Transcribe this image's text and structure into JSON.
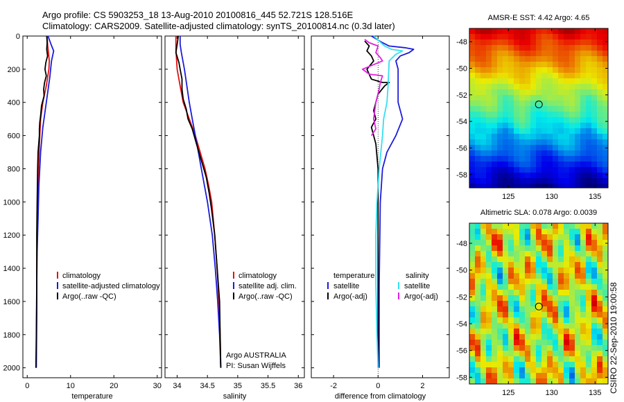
{
  "header": {
    "title": "Argo profile: CS 5903253_18 13-Aug-2010 20100816_445 52.721S 128.516E",
    "subtitle": "Climatology: CARS2009. Satellite-adjusted climatology: synTS_20100814.nc (0.3d later)"
  },
  "side_label": "CSIRO 22-Sep-2010 19:00:58",
  "colors": {
    "climatology": "#e01010",
    "satellite": "#1a1adc",
    "argo": "#000000",
    "salinity_satellite": "#33e0f0",
    "salinity_argo": "#e020e0"
  },
  "chart_data": [
    {
      "type": "line",
      "xlabel": "temperature",
      "xlim": [
        -1,
        31
      ],
      "xticks": [
        0,
        10,
        20,
        30
      ],
      "ylim": [
        0,
        2060
      ],
      "yticks": [
        0,
        200,
        400,
        600,
        800,
        1000,
        1200,
        1400,
        1600,
        1800,
        2000
      ],
      "y_reversed": true,
      "legend": [
        "climatology",
        "satellite-adjusted climatology",
        "Argo(..raw -QC)"
      ],
      "series": [
        {
          "name": "climatology",
          "color": "#e01010",
          "points": [
            [
              4.6,
              0
            ],
            [
              4.7,
              50
            ],
            [
              4.9,
              100
            ],
            [
              5.1,
              150
            ],
            [
              5.0,
              200
            ],
            [
              4.4,
              300
            ],
            [
              3.6,
              400
            ],
            [
              3.1,
              500
            ],
            [
              2.9,
              600
            ],
            [
              2.6,
              800
            ],
            [
              2.4,
              1000
            ],
            [
              2.3,
              1200
            ],
            [
              2.2,
              1400
            ],
            [
              2.2,
              1600
            ],
            [
              2.1,
              1800
            ],
            [
              2.1,
              1900
            ],
            [
              2.0,
              2000
            ]
          ]
        },
        {
          "name": "satellite-adjusted climatology",
          "color": "#1a1adc",
          "points": [
            [
              4.8,
              0
            ],
            [
              5.5,
              50
            ],
            [
              6.1,
              90
            ],
            [
              5.6,
              150
            ],
            [
              5.2,
              250
            ],
            [
              4.4,
              400
            ],
            [
              3.6,
              550
            ],
            [
              3.1,
              700
            ],
            [
              2.7,
              900
            ],
            [
              2.5,
              1100
            ],
            [
              2.3,
              1300
            ],
            [
              2.2,
              1500
            ],
            [
              2.2,
              1700
            ],
            [
              2.1,
              2000
            ]
          ]
        },
        {
          "name": "Argo(..raw -QC)",
          "color": "#000000",
          "points": [
            [
              4.5,
              0
            ],
            [
              4.6,
              40
            ],
            [
              4.5,
              80
            ],
            [
              4.7,
              120
            ],
            [
              4.3,
              160
            ],
            [
              4.1,
              200
            ],
            [
              4.4,
              240
            ],
            [
              4.0,
              280
            ],
            [
              3.8,
              320
            ],
            [
              3.9,
              360
            ],
            [
              3.3,
              420
            ],
            [
              3.1,
              480
            ],
            [
              2.9,
              520
            ],
            [
              2.8,
              560
            ],
            [
              2.8,
              600
            ],
            [
              2.5,
              700
            ],
            [
              2.4,
              800
            ],
            [
              2.3,
              1000
            ],
            [
              2.2,
              1200
            ],
            [
              2.2,
              1500
            ],
            [
              2.1,
              1800
            ],
            [
              2.0,
              2000
            ]
          ]
        }
      ]
    },
    {
      "type": "line",
      "xlabel": "salinity",
      "xlim": [
        33.8,
        36.1
      ],
      "xticks": [
        34,
        34.5,
        35,
        35.5,
        36
      ],
      "ylim": [
        0,
        2060
      ],
      "y_reversed": true,
      "legend": [
        "climatology",
        "satellite adj. clim.",
        "Argo(..raw -QC)"
      ],
      "annotation": [
        "Argo AUSTRALIA",
        "PI: Susan Wijffels"
      ],
      "series": [
        {
          "name": "climatology",
          "color": "#e01010",
          "points": [
            [
              33.98,
              0
            ],
            [
              33.98,
              80
            ],
            [
              34.0,
              200
            ],
            [
              34.05,
              300
            ],
            [
              34.1,
              400
            ],
            [
              34.2,
              500
            ],
            [
              34.3,
              600
            ],
            [
              34.38,
              700
            ],
            [
              34.46,
              800
            ],
            [
              34.52,
              900
            ],
            [
              34.57,
              1000
            ],
            [
              34.62,
              1200
            ],
            [
              34.66,
              1400
            ],
            [
              34.69,
              1600
            ],
            [
              34.71,
              1800
            ],
            [
              34.72,
              2000
            ]
          ]
        },
        {
          "name": "satellite adj. clim.",
          "color": "#1a1adc",
          "points": [
            [
              34.05,
              0
            ],
            [
              34.05,
              50
            ],
            [
              34.07,
              100
            ],
            [
              34.12,
              200
            ],
            [
              34.16,
              300
            ],
            [
              34.2,
              400
            ],
            [
              34.25,
              500
            ],
            [
              34.3,
              600
            ],
            [
              34.35,
              700
            ],
            [
              34.4,
              800
            ],
            [
              34.45,
              900
            ],
            [
              34.5,
              1000
            ],
            [
              34.58,
              1200
            ],
            [
              34.63,
              1400
            ],
            [
              34.67,
              1600
            ],
            [
              34.7,
              1800
            ],
            [
              34.72,
              2000
            ]
          ]
        },
        {
          "name": "Argo(..raw -QC)",
          "color": "#000000",
          "points": [
            [
              34.02,
              0
            ],
            [
              34.0,
              50
            ],
            [
              33.98,
              100
            ],
            [
              34.03,
              160
            ],
            [
              34.05,
              200
            ],
            [
              34.08,
              260
            ],
            [
              34.08,
              320
            ],
            [
              34.1,
              380
            ],
            [
              34.15,
              440
            ],
            [
              34.18,
              500
            ],
            [
              34.25,
              560
            ],
            [
              34.32,
              650
            ],
            [
              34.4,
              750
            ],
            [
              34.48,
              850
            ],
            [
              34.53,
              950
            ],
            [
              34.57,
              1050
            ],
            [
              34.62,
              1200
            ],
            [
              34.66,
              1400
            ],
            [
              34.7,
              1600
            ],
            [
              34.71,
              1800
            ],
            [
              34.72,
              2000
            ]
          ]
        }
      ]
    },
    {
      "type": "line",
      "xlabel": "difference from climatology",
      "xlim": [
        -3,
        3.2
      ],
      "xticks": [
        -2,
        0,
        2
      ],
      "ylim": [
        0,
        2060
      ],
      "y_reversed": true,
      "legend_groups": [
        {
          "title": "temperature",
          "entries": [
            "satellite",
            "Argo(-adj)"
          ]
        },
        {
          "title": "salinity",
          "entries": [
            "satellite",
            "Argo(-adj)"
          ]
        }
      ],
      "series": [
        {
          "name": "temperature satellite",
          "color": "#1a1adc",
          "points": [
            [
              -0.3,
              0
            ],
            [
              0.2,
              40
            ],
            [
              0.5,
              60
            ],
            [
              1.2,
              70
            ],
            [
              1.6,
              80
            ],
            [
              1.4,
              100
            ],
            [
              1.0,
              120
            ],
            [
              0.8,
              150
            ],
            [
              0.9,
              200
            ],
            [
              0.9,
              300
            ],
            [
              0.9,
              400
            ],
            [
              1.1,
              500
            ],
            [
              0.8,
              600
            ],
            [
              0.4,
              700
            ],
            [
              0.2,
              800
            ],
            [
              0.1,
              1000
            ],
            [
              0.05,
              1500
            ],
            [
              0.05,
              2000
            ]
          ]
        },
        {
          "name": "temperature Argo(-adj)",
          "color": "#000000",
          "points": [
            [
              -0.6,
              30
            ],
            [
              -0.4,
              60
            ],
            [
              -0.5,
              90
            ],
            [
              -0.3,
              120
            ],
            [
              -0.2,
              150
            ],
            [
              -0.5,
              200
            ],
            [
              -0.3,
              260
            ],
            [
              0.2,
              280
            ],
            [
              0.5,
              280
            ],
            [
              0.3,
              300
            ],
            [
              0.0,
              350
            ],
            [
              -0.1,
              400
            ],
            [
              -0.2,
              450
            ],
            [
              -0.1,
              500
            ],
            [
              -0.3,
              550
            ],
            [
              -0.1,
              650
            ],
            [
              0.0,
              800
            ],
            [
              0.0,
              1000
            ],
            [
              0.0,
              1200
            ],
            [
              0.0,
              2000
            ]
          ]
        },
        {
          "name": "salinity satellite",
          "color": "#33e0f0",
          "points": [
            [
              -0.2,
              0
            ],
            [
              0.3,
              60
            ],
            [
              0.6,
              80
            ],
            [
              1.1,
              90
            ],
            [
              0.8,
              110
            ],
            [
              0.5,
              150
            ],
            [
              0.45,
              300
            ],
            [
              0.4,
              400
            ],
            [
              0.25,
              500
            ],
            [
              0.2,
              600
            ],
            [
              0.05,
              800
            ],
            [
              -0.05,
              1000
            ],
            [
              -0.1,
              1200
            ],
            [
              -0.1,
              1500
            ],
            [
              -0.05,
              1800
            ],
            [
              0.0,
              2000
            ]
          ]
        },
        {
          "name": "salinity Argo(-adj)",
          "color": "#e020e0",
          "points": [
            [
              -0.6,
              20
            ],
            [
              -0.4,
              40
            ],
            [
              0.0,
              60
            ],
            [
              -0.1,
              100
            ],
            [
              0.1,
              130
            ],
            [
              0.2,
              150
            ],
            [
              -0.7,
              200
            ],
            [
              -0.4,
              230
            ],
            [
              0.2,
              240
            ],
            [
              0.1,
              280
            ],
            [
              0.05,
              320
            ],
            [
              -0.1,
              400
            ],
            [
              -0.2,
              500
            ],
            [
              -0.1,
              560
            ],
            [
              -0.3,
              600
            ]
          ]
        }
      ]
    },
    {
      "type": "heatmap",
      "title": "AMSR-E SST: 4.42 Argo: 4.65",
      "xlim": [
        120.5,
        136.5
      ],
      "xticks": [
        125,
        130,
        135
      ],
      "ylim": [
        -59,
        -47
      ],
      "yticks": [
        -48,
        -50,
        -52,
        -54,
        -56,
        -58
      ],
      "marker": [
        128.516,
        -52.721
      ]
    },
    {
      "type": "heatmap",
      "title": "Altimetric SLA: 0.078 Argo: 0.0039",
      "xlim": [
        120.5,
        136.5
      ],
      "xticks": [
        125,
        130,
        135
      ],
      "ylim": [
        -58.5,
        -46.5
      ],
      "yticks": [
        -48,
        -50,
        -52,
        -54,
        -56,
        -58
      ],
      "marker": [
        128.516,
        -52.721
      ]
    }
  ]
}
